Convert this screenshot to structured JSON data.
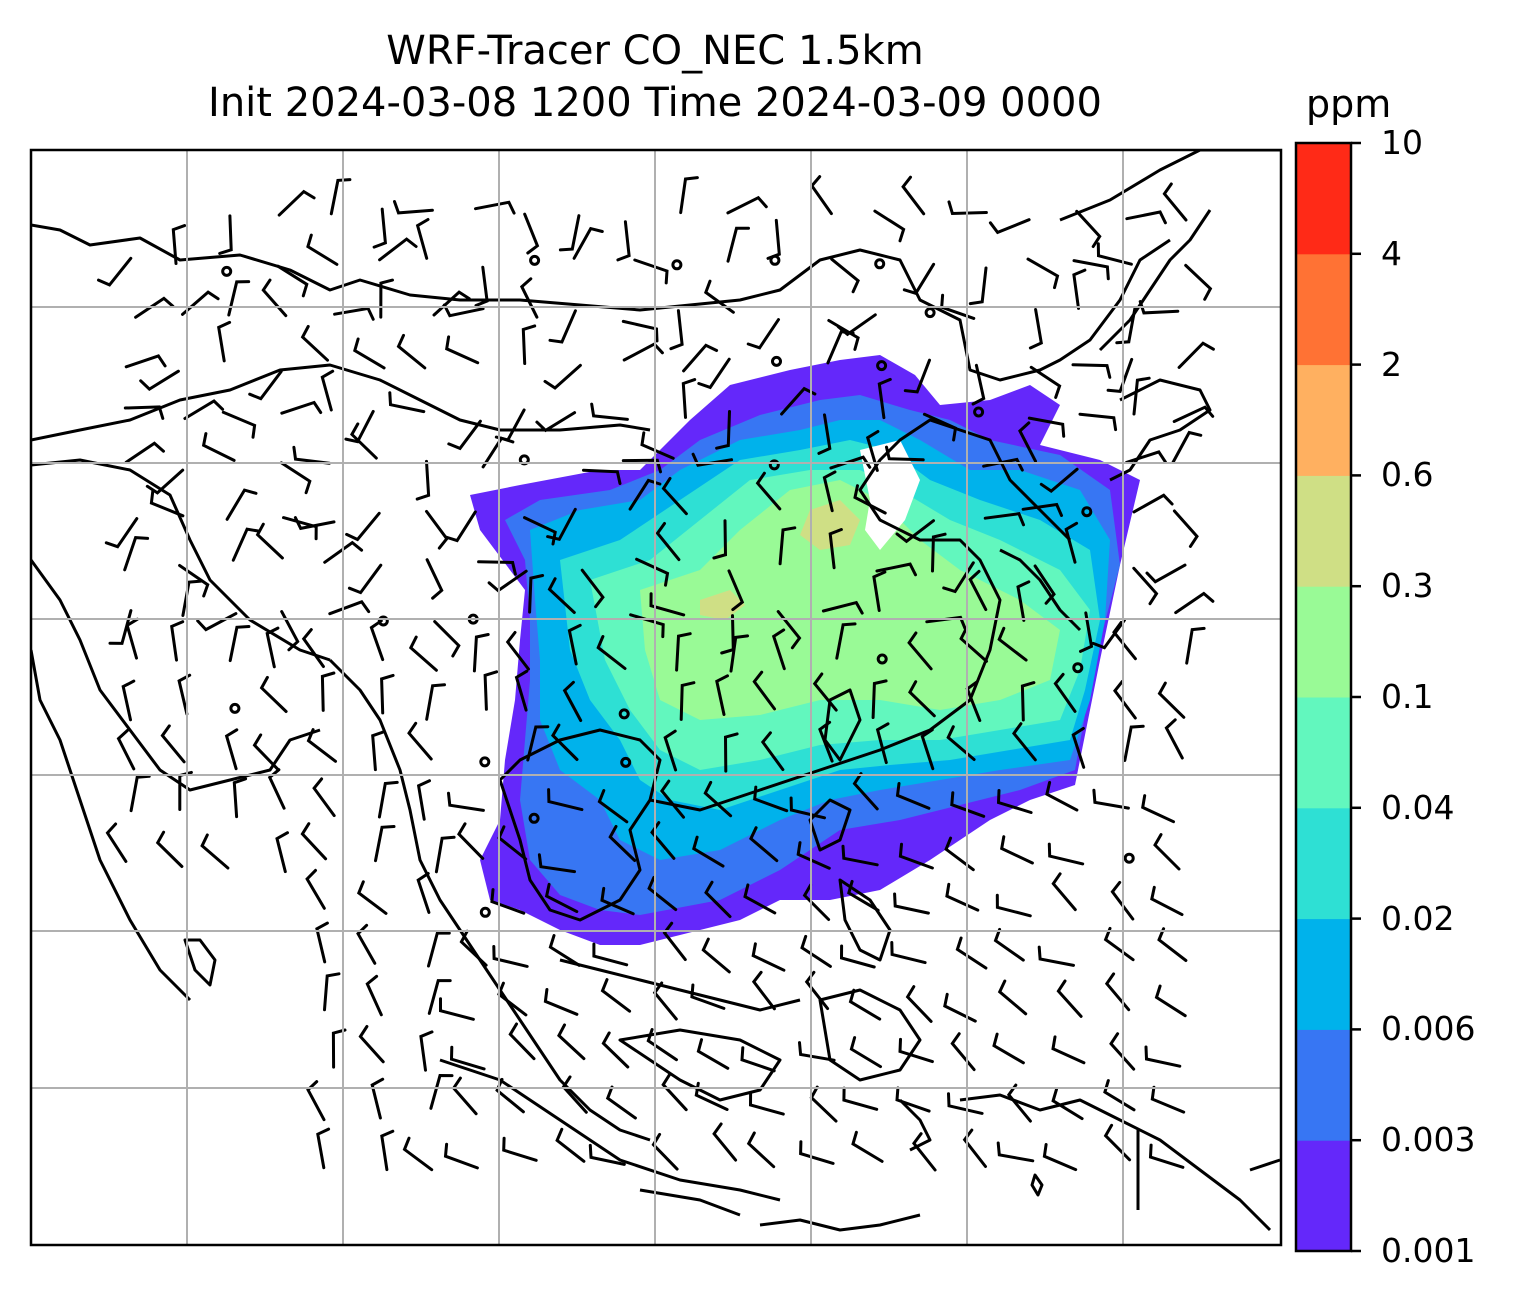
{
  "title": {
    "line1": "WRF-Tracer CO_NEC 1.5km",
    "line2": "Init 2024-03-08 1200 Time 2024-03-09 0000"
  },
  "colorbar": {
    "units": "ppm",
    "ticks": [
      "0.001",
      "0.003",
      "0.006",
      "0.02",
      "0.04",
      "0.1",
      "0.3",
      "0.6",
      "2",
      "4",
      "10"
    ],
    "colors": [
      "#6428fa",
      "#3776f3",
      "#00b2eb",
      "#2ee0d4",
      "#62f7be",
      "#99fa96",
      "#cfdf85",
      "#ffb060",
      "#ff7234",
      "#ff2a17"
    ]
  },
  "map": {
    "concentration_colors": [
      "#6428fa",
      "#3776f3",
      "#00b2eb",
      "#2ee0d4",
      "#62f7be",
      "#99fa96",
      "#cfdf85"
    ],
    "coastline_color": "#000000",
    "gridline_color": "#b0b0b0",
    "wind_barbs": "black"
  }
}
